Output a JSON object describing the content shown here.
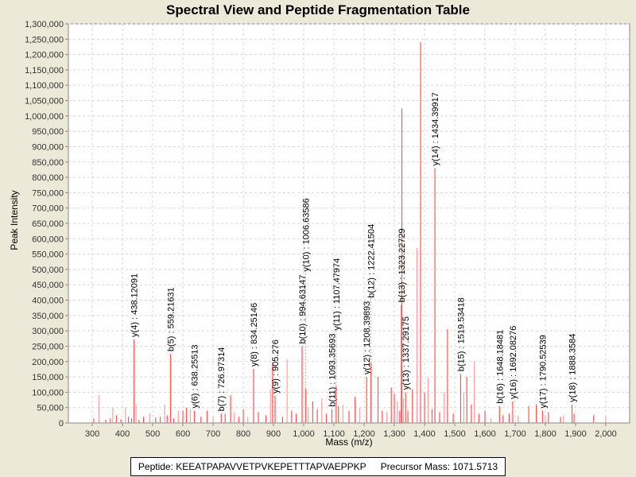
{
  "chart_data": {
    "type": "bar",
    "title": "Spectral View and Peptide Fragmentation Table",
    "xlabel": "Mass (m/z)",
    "ylabel": "Peak Intensity",
    "xlim": [
      221,
      2079
    ],
    "ylim": [
      0,
      1300000
    ],
    "x_ticks": [
      300,
      400,
      500,
      600,
      700,
      800,
      900,
      1000,
      1100,
      1200,
      1300,
      1400,
      1500,
      1600,
      1700,
      1800,
      1900,
      2000
    ],
    "y_tick_step": 50000,
    "grid": true,
    "peak_color": "#FF5555",
    "peak_color_faint": "#FFA0A0",
    "peaks": [
      [
        305,
        15000
      ],
      [
        322,
        90000
      ],
      [
        345,
        10000
      ],
      [
        360,
        15000
      ],
      [
        368,
        50000
      ],
      [
        380,
        25000
      ],
      [
        395,
        12000
      ],
      [
        410,
        50000
      ],
      [
        420,
        20000
      ],
      [
        430,
        15000
      ],
      [
        445,
        60000
      ],
      [
        455,
        10000
      ],
      [
        470,
        20000
      ],
      [
        490,
        30000
      ],
      [
        510,
        18000
      ],
      [
        525,
        20000
      ],
      [
        540,
        60000
      ],
      [
        548,
        25000
      ],
      [
        570,
        15000
      ],
      [
        585,
        40000
      ],
      [
        600,
        40000
      ],
      [
        612,
        50000
      ],
      [
        625,
        45000
      ],
      [
        660,
        20000
      ],
      [
        680,
        40000
      ],
      [
        700,
        20000
      ],
      [
        740,
        30000
      ],
      [
        758,
        90000
      ],
      [
        770,
        35000
      ],
      [
        785,
        20000
      ],
      [
        800,
        45000
      ],
      [
        815,
        20000
      ],
      [
        850,
        35000
      ],
      [
        875,
        25000
      ],
      [
        890,
        110000
      ],
      [
        897,
        195000
      ],
      [
        930,
        20000
      ],
      [
        945,
        207000
      ],
      [
        960,
        40000
      ],
      [
        975,
        30000
      ],
      [
        1015,
        50000
      ],
      [
        1030,
        70000
      ],
      [
        1045,
        45000
      ],
      [
        1060,
        80000
      ],
      [
        1075,
        30000
      ],
      [
        1115,
        55000
      ],
      [
        1130,
        60000
      ],
      [
        1150,
        40000
      ],
      [
        1170,
        85000
      ],
      [
        1185,
        50000
      ],
      [
        1246,
        150000
      ],
      [
        1260,
        40000
      ],
      [
        1275,
        35000
      ],
      [
        1290,
        115000
      ],
      [
        1300,
        95000
      ],
      [
        1310,
        70000
      ],
      [
        1318,
        40000
      ],
      [
        1325,
        1025000
      ],
      [
        1330,
        80000
      ],
      [
        1345,
        40000
      ],
      [
        1360,
        110000
      ],
      [
        1375,
        570000
      ],
      [
        1387,
        1240000
      ],
      [
        1400,
        100000
      ],
      [
        1412,
        145000
      ],
      [
        1425,
        45000
      ],
      [
        1450,
        35000
      ],
      [
        1465,
        100000
      ],
      [
        1476,
        305000
      ],
      [
        1495,
        30000
      ],
      [
        1530,
        100000
      ],
      [
        1540,
        150000
      ],
      [
        1555,
        60000
      ],
      [
        1565,
        200000
      ],
      [
        1580,
        30000
      ],
      [
        1600,
        40000
      ],
      [
        1620,
        15000
      ],
      [
        1660,
        25000
      ],
      [
        1680,
        30000
      ],
      [
        1710,
        25000
      ],
      [
        1745,
        55000
      ],
      [
        1770,
        60000
      ],
      [
        1800,
        25000
      ],
      [
        1810,
        35000
      ],
      [
        1850,
        20000
      ],
      [
        1860,
        25000
      ],
      [
        1895,
        30000
      ],
      [
        1960,
        25000
      ],
      [
        2000,
        22000
      ]
    ],
    "annotations": [
      {
        "label": "y(4) : 438.12091",
        "mz": 438.12091,
        "intensity": 272000
      },
      {
        "label": "b(5) : 559.21631",
        "mz": 559.21631,
        "intensity": 225000
      },
      {
        "label": "y(6) : 638.25513",
        "mz": 638.25513,
        "intensity": 40000
      },
      {
        "label": "b(7) : 726.97314",
        "mz": 726.97314,
        "intensity": 30000
      },
      {
        "label": "y(8) : 834.25146",
        "mz": 834.25146,
        "intensity": 176000
      },
      {
        "label": "y(9) : 905.276",
        "mz": 905.276,
        "intensity": 88000
      },
      {
        "label": "b(10) : 994.63147",
        "mz": 994.63147,
        "intensity": 250000
      },
      {
        "label": "y(10) : 1006.63586",
        "mz": 1006.63586,
        "intensity": 110000
      },
      {
        "label": "b(11) : 1093.35693",
        "mz": 1093.35693,
        "intensity": 45000
      },
      {
        "label": "y(11) : 1107.47974",
        "mz": 1107.47974,
        "intensity": 120000
      },
      {
        "label": "y(12) : 1208.39893",
        "mz": 1208.39893,
        "intensity": 150000
      },
      {
        "label": "b(12) : 1222.41504",
        "mz": 1222.41504,
        "intensity": 195000
      },
      {
        "label": "b(13) : 1323.22729",
        "mz": 1323.22729,
        "intensity": 385000
      },
      {
        "label": "y(13) : 1337.29175",
        "mz": 1337.29175,
        "intensity": 100000
      },
      {
        "label": "y(14) : 1434.39917",
        "mz": 1434.39917,
        "intensity": 830000
      },
      {
        "label": "b(15) : 1519.53418",
        "mz": 1519.53418,
        "intensity": 160000
      },
      {
        "label": "b(16) : 1648.18481",
        "mz": 1648.18481,
        "intensity": 55000
      },
      {
        "label": "y(16) : 1692.08276",
        "mz": 1692.08276,
        "intensity": 70000
      },
      {
        "label": "y(17) : 1790.52539",
        "mz": 1790.52539,
        "intensity": 40000
      },
      {
        "label": "y(18) : 1888.3584",
        "mz": 1888.3584,
        "intensity": 60000
      }
    ]
  },
  "legend": {
    "peptide": "Peptide: KEEATPAPAVVETPVKEPETTTAPVAEPPKP",
    "precursor": "Precursor Mass: 1071.5713"
  }
}
